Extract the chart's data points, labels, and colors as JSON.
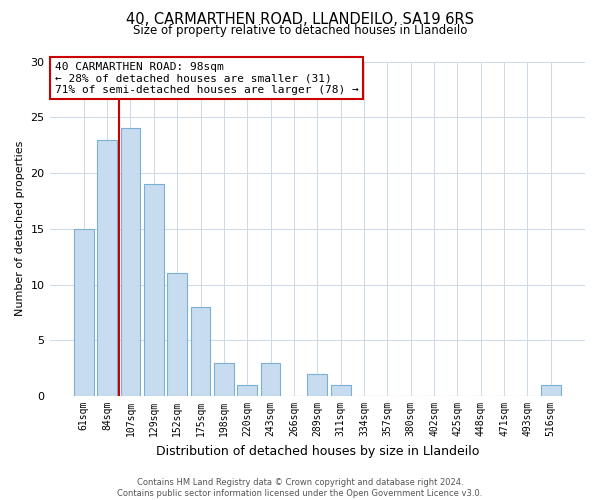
{
  "title": "40, CARMARTHEN ROAD, LLANDEILO, SA19 6RS",
  "subtitle": "Size of property relative to detached houses in Llandeilo",
  "xlabel": "Distribution of detached houses by size in Llandeilo",
  "ylabel": "Number of detached properties",
  "footer_line1": "Contains HM Land Registry data © Crown copyright and database right 2024.",
  "footer_line2": "Contains public sector information licensed under the Open Government Licence v3.0.",
  "bar_labels": [
    "61sqm",
    "84sqm",
    "107sqm",
    "129sqm",
    "152sqm",
    "175sqm",
    "198sqm",
    "220sqm",
    "243sqm",
    "266sqm",
    "289sqm",
    "311sqm",
    "334sqm",
    "357sqm",
    "380sqm",
    "402sqm",
    "425sqm",
    "448sqm",
    "471sqm",
    "493sqm",
    "516sqm"
  ],
  "bar_values": [
    15,
    23,
    24,
    19,
    11,
    8,
    3,
    1,
    3,
    0,
    2,
    1,
    0,
    0,
    0,
    0,
    0,
    0,
    0,
    0,
    1
  ],
  "bar_color": "#c8dcf0",
  "bar_edge_color": "#7bafd4",
  "vline_color": "#cc0000",
  "vline_x": 1.5,
  "annotation_title": "40 CARMARTHEN ROAD: 98sqm",
  "annotation_line1": "← 28% of detached houses are smaller (31)",
  "annotation_line2": "71% of semi-detached houses are larger (78) →",
  "annotation_box_color": "#ffffff",
  "annotation_box_edge": "#cc0000",
  "ylim": [
    0,
    30
  ],
  "yticks": [
    0,
    5,
    10,
    15,
    20,
    25,
    30
  ],
  "bg_color": "#ffffff",
  "grid_color": "#ccd9e8"
}
